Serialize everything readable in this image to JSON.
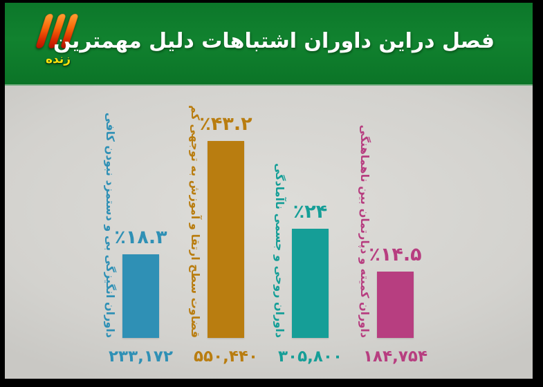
{
  "header": {
    "title": "مهمترین دلیل اشتباهات داوران دراین فصل",
    "logo": {
      "icon": "irib-tv3-logo",
      "live_label": "زنده"
    }
  },
  "chart_data": {
    "type": "bar",
    "title": "مهمترین دلیل اشتباهات داوران دراین فصل",
    "orientation": "vertical",
    "value_axis": "percent",
    "ylim": [
      0,
      45
    ],
    "grid": false,
    "legend": false,
    "background_color": "#d5d4d0",
    "header_color": "#0e7b2b",
    "categories": [
      "کافی نبودن دستمزد و بی انگیزگی داوران",
      "کم توجهی به آموزش و ارتقا سطح قضاوت",
      "ناآمادگی جسمی و روحی داوران",
      "ناهماهنگی بین دپارتمان و کمیته داوران"
    ],
    "values": [
      18.3,
      43.2,
      24,
      14.5
    ],
    "bars": [
      {
        "label": "کافی نبودن دستمزد و بی انگیزگی داوران",
        "percent": 18.3,
        "percent_label": "٪۱۸.۳",
        "votes": 233172,
        "votes_label": "۲۳۳,۱۷۲",
        "color": "#2f90b5"
      },
      {
        "label": "کم توجهی به آموزش و ارتقا سطح قضاوت",
        "percent": 43.2,
        "percent_label": "٪۴۳.۲",
        "votes": 550440,
        "votes_label": "۵۵۰,۴۴۰",
        "color": "#b97d10"
      },
      {
        "label": "ناآمادگی جسمی و روحی داوران",
        "percent": 24,
        "percent_label": "٪۲۴",
        "votes": 305800,
        "votes_label": "۳۰۵,۸۰۰",
        "color": "#159e97"
      },
      {
        "label": "ناهماهنگی بین دپارتمان و کمیته داوران",
        "percent": 14.5,
        "percent_label": "٪۱۴.۵",
        "votes": 184754,
        "votes_label": "۱۸۴,۷۵۴",
        "color": "#b73e80"
      }
    ]
  }
}
